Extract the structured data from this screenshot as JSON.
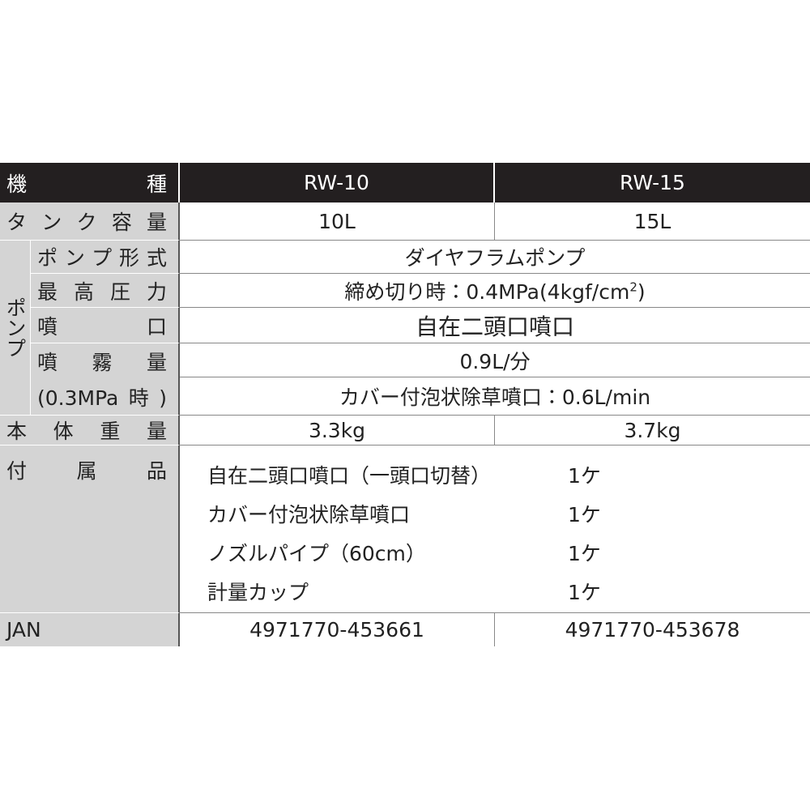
{
  "header": {
    "label": "機種",
    "models": [
      "RW-10",
      "RW-15"
    ]
  },
  "tank": {
    "label": "タンク容量",
    "values": [
      "10L",
      "15L"
    ]
  },
  "pump": {
    "group_label": "ポンプ",
    "type": {
      "label": "ポンプ形式",
      "value": "ダイヤフラムポンプ"
    },
    "pressure": {
      "label": "最高圧力",
      "value_before": "締め切り時：0.4MPa(4kgf/cm",
      "superscript": "2",
      "value_after": ")"
    },
    "nozzle": {
      "label": "噴口",
      "value": "自在二頭口噴口"
    },
    "spray": {
      "label": "噴霧量",
      "sublabel": "(0.3MPa時)",
      "values": [
        "0.9L/分",
        "カバー付泡状除草噴口：0.6L/min"
      ]
    }
  },
  "weight": {
    "label": "本体重量",
    "values": [
      "3.3kg",
      "3.7kg"
    ]
  },
  "accessories": {
    "label": "付属品",
    "items": [
      {
        "name": "自在二頭口噴口（一頭口切替）",
        "qty": "1ケ"
      },
      {
        "name": "カバー付泡状除草噴口",
        "qty": "1ケ"
      },
      {
        "name": "ノズルパイプ（60cm）",
        "qty": "1ケ"
      },
      {
        "name": "計量カップ",
        "qty": "1ケ"
      }
    ]
  },
  "jan": {
    "label": "JAN",
    "values": [
      "4971770-453661",
      "4971770-453678"
    ]
  }
}
